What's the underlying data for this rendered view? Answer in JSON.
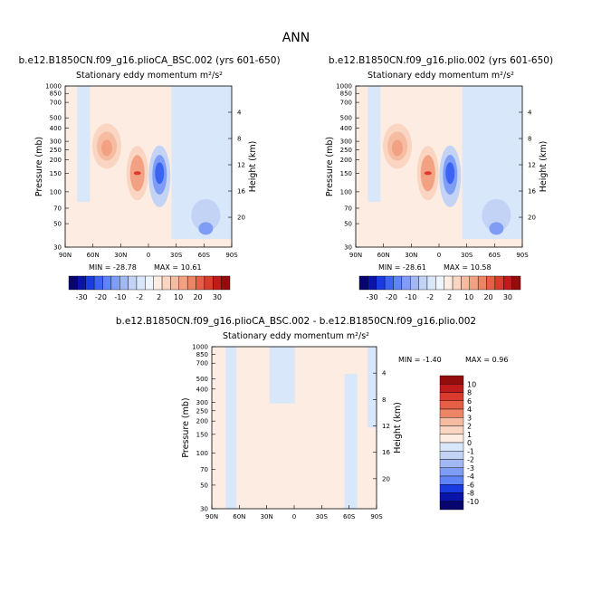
{
  "figure": {
    "title": "ANN",
    "panels": [
      {
        "title": "b.e12.B1850CN.f09_g16.plioCA_BSC.002 (yrs 601-650)",
        "subtitle": "Stationary eddy momentum m²/s²",
        "min_label": "MIN = -28.78",
        "max_label": "MAX = 10.61"
      },
      {
        "title": "b.e12.B1850CN.f09_g16.plio.002 (yrs 601-650)",
        "subtitle": "Stationary eddy momentum m²/s²",
        "min_label": "MIN = -28.61",
        "max_label": "MAX = 10.58"
      },
      {
        "title": "b.e12.B1850CN.f09_g16.plioCA_BSC.002 - b.e12.B1850CN.f09_g16.plio.002",
        "subtitle": "Stationary eddy momentum m²/s²",
        "min_label": "MIN = -1.40",
        "max_label": "MAX = 0.96"
      }
    ]
  },
  "chart_data": [
    {
      "type": "heatmap",
      "title": "b.e12.B1850CN.f09_g16.plioCA_BSC.002 (yrs 601-650)",
      "subtitle": "Stationary eddy momentum m²/s²",
      "xlabel": "",
      "ylabel": "Pressure (mb)",
      "ylabel_right": "Height (km)",
      "x_ticks": [
        "90N",
        "60N",
        "30N",
        "0",
        "30S",
        "60S",
        "90S"
      ],
      "y_ticks": [
        "30",
        "50",
        "70",
        "100",
        "150",
        "200",
        "250",
        "300",
        "400",
        "500",
        "700",
        "850",
        "1000"
      ],
      "y_ticks_right": [
        "20",
        "16",
        "12",
        "8",
        "4"
      ],
      "ylim": [
        1000,
        30
      ],
      "x_range_deg": [
        90,
        -90
      ],
      "min": -28.78,
      "max": 10.61,
      "features": [
        {
          "lat": 12,
          "p": 150,
          "value": 10.6
        },
        {
          "lat": -12,
          "p": 150,
          "value": -28.8
        },
        {
          "lat": 45,
          "p": 250,
          "value": 8
        },
        {
          "lat": -50,
          "p": 60,
          "value": -3
        }
      ],
      "colorbar": {
        "levels": [
          "-30",
          "-20",
          "-10",
          "-2",
          "2",
          "10",
          "20",
          "30"
        ],
        "colors": [
          "#08066e",
          "#0a14a8",
          "#1a3be0",
          "#3c64f2",
          "#5f84f5",
          "#7f9df5",
          "#a2b8f4",
          "#c2d3f6",
          "#d9e7fa",
          "#eef5fd",
          "#fdece2",
          "#f9d5c2",
          "#f5bca2",
          "#f2a282",
          "#ec8563",
          "#e45f44",
          "#da3b2c",
          "#c01b1b",
          "#940d0d"
        ]
      }
    },
    {
      "type": "heatmap",
      "title": "b.e12.B1850CN.f09_g16.plio.002 (yrs 601-650)",
      "subtitle": "Stationary eddy momentum m²/s²",
      "xlabel": "",
      "ylabel": "Pressure (mb)",
      "ylabel_right": "Height (km)",
      "x_ticks": [
        "90N",
        "60N",
        "30N",
        "0",
        "30S",
        "60S",
        "90S"
      ],
      "y_ticks": [
        "30",
        "50",
        "70",
        "100",
        "150",
        "200",
        "250",
        "300",
        "400",
        "500",
        "700",
        "850",
        "1000"
      ],
      "y_ticks_right": [
        "20",
        "16",
        "12",
        "8",
        "4"
      ],
      "ylim": [
        1000,
        30
      ],
      "x_range_deg": [
        90,
        -90
      ],
      "min": -28.61,
      "max": 10.58,
      "features": [
        {
          "lat": 12,
          "p": 150,
          "value": 10.6
        },
        {
          "lat": -12,
          "p": 150,
          "value": -28.6
        },
        {
          "lat": 45,
          "p": 250,
          "value": 8
        },
        {
          "lat": -50,
          "p": 55,
          "value": -4
        }
      ],
      "colorbar": {
        "levels": [
          "-30",
          "-20",
          "-10",
          "-2",
          "2",
          "10",
          "20",
          "30"
        ],
        "colors": [
          "#08066e",
          "#0a14a8",
          "#1a3be0",
          "#3c64f2",
          "#5f84f5",
          "#7f9df5",
          "#a2b8f4",
          "#c2d3f6",
          "#d9e7fa",
          "#eef5fd",
          "#fdece2",
          "#f9d5c2",
          "#f5bca2",
          "#f2a282",
          "#ec8563",
          "#e45f44",
          "#da3b2c",
          "#c01b1b",
          "#940d0d"
        ]
      }
    },
    {
      "type": "heatmap",
      "title": "b.e12.B1850CN.f09_g16.plioCA_BSC.002 - b.e12.B1850CN.f09_g16.plio.002",
      "subtitle": "Stationary eddy momentum m²/s²",
      "xlabel": "",
      "ylabel": "Pressure (mb)",
      "ylabel_right": "Height (km)",
      "x_ticks": [
        "90N",
        "60N",
        "30N",
        "0",
        "30S",
        "60S",
        "90S"
      ],
      "y_ticks": [
        "30",
        "50",
        "70",
        "100",
        "150",
        "200",
        "250",
        "300",
        "400",
        "500",
        "700",
        "850",
        "1000"
      ],
      "y_ticks_right": [
        "20",
        "16",
        "12",
        "8",
        "4"
      ],
      "ylim": [
        1000,
        30
      ],
      "x_range_deg": [
        90,
        -90
      ],
      "min": -1.4,
      "max": 0.96,
      "colorbar": {
        "levels": [
          "10",
          "8",
          "6",
          "4",
          "3",
          "2",
          "1",
          "0",
          "-1",
          "-2",
          "-3",
          "-4",
          "-6",
          "-8",
          "-10"
        ],
        "colors": [
          "#940d0d",
          "#c01b1b",
          "#da3b2c",
          "#e45f44",
          "#ec8563",
          "#f5bca2",
          "#f9d5c2",
          "#fdece2",
          "#d9e7fa",
          "#c2d3f6",
          "#a2b8f4",
          "#7f9df5",
          "#5f84f5",
          "#1a3be0",
          "#0a14a8",
          "#08066e"
        ]
      }
    }
  ]
}
